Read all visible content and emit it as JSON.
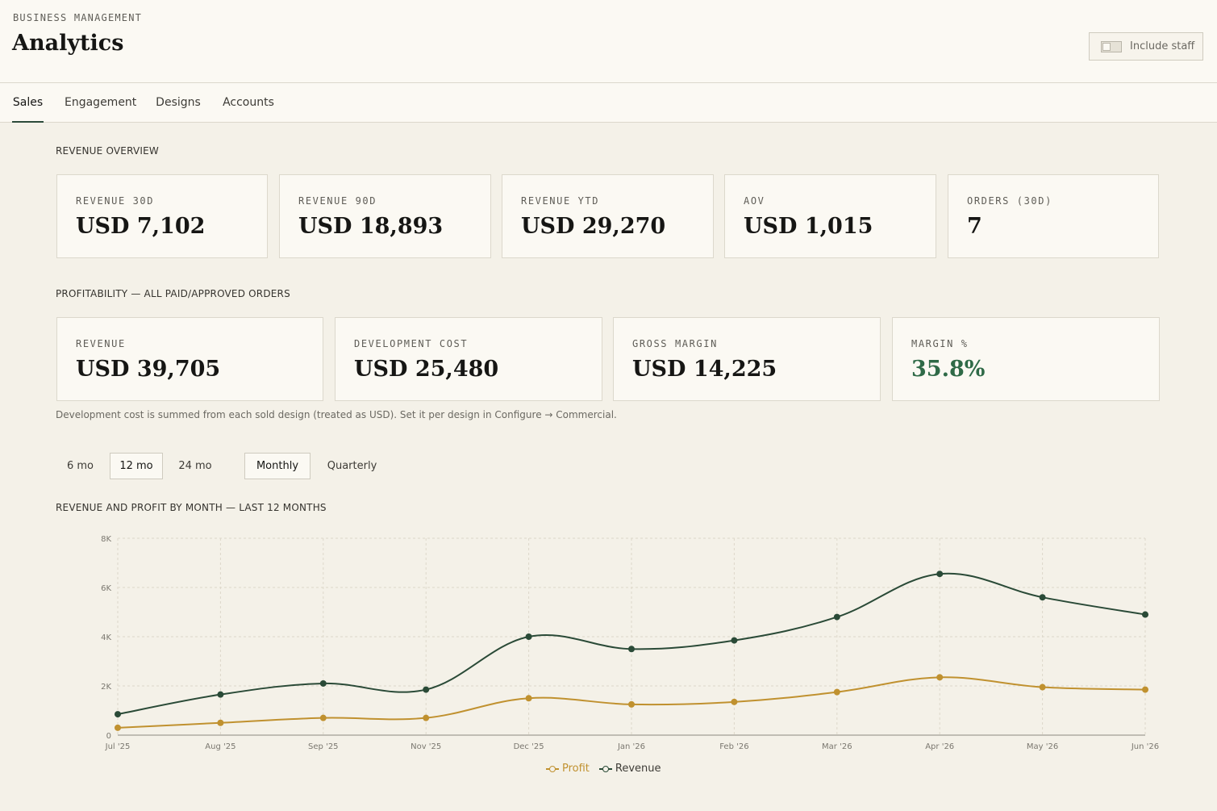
{
  "header": {
    "eyebrow": "BUSINESS MANAGEMENT",
    "title": "Analytics",
    "include_staff_label": "Include staff",
    "include_staff_on": false
  },
  "tabs": [
    {
      "label": "Sales",
      "active": true
    },
    {
      "label": "Engagement",
      "active": false
    },
    {
      "label": "Designs",
      "active": false
    },
    {
      "label": "Accounts",
      "active": false
    }
  ],
  "revenue_overview": {
    "label": "REVENUE OVERVIEW",
    "cards": [
      {
        "label": "REVENUE 30D",
        "value": "USD 7,102"
      },
      {
        "label": "REVENUE 90D",
        "value": "USD 18,893"
      },
      {
        "label": "REVENUE YTD",
        "value": "USD 29,270"
      },
      {
        "label": "AOV",
        "value": "USD 1,015"
      },
      {
        "label": "ORDERS (30D)",
        "value": "7"
      }
    ]
  },
  "profitability": {
    "label": "PROFITABILITY — ALL PAID/APPROVED ORDERS",
    "cards": [
      {
        "label": "REVENUE",
        "value": "USD 39,705"
      },
      {
        "label": "DEVELOPMENT COST",
        "value": "USD 25,480"
      },
      {
        "label": "GROSS MARGIN",
        "value": "USD 14,225"
      },
      {
        "label": "MARGIN %",
        "value": "35.8%"
      }
    ],
    "note": "Development cost is summed from each sold design (treated as USD). Set it per design in Configure → Commercial."
  },
  "range_options": [
    {
      "label": "6 mo",
      "active": false
    },
    {
      "label": "12 mo",
      "active": true
    },
    {
      "label": "24 mo",
      "active": false
    }
  ],
  "granularity_options": [
    {
      "label": "Monthly",
      "active": true
    },
    {
      "label": "Quarterly",
      "active": false
    }
  ],
  "chart_title": "REVENUE AND PROFIT BY MONTH — LAST 12 MONTHS",
  "colors": {
    "accent_green": "#2f6a47",
    "revenue_line": "#2a4a37",
    "profit_line": "#c0912f"
  },
  "chart_data": {
    "type": "line",
    "x": [
      "Jul '25",
      "Aug '25",
      "Sep '25",
      "Nov '25",
      "Dec '25",
      "Jan '26",
      "Feb '26",
      "Mar '26",
      "Apr '26",
      "May '26",
      "Jun '26"
    ],
    "series": [
      {
        "name": "Profit",
        "color": "#c0912f",
        "values": [
          300,
          500,
          700,
          700,
          1500,
          1250,
          1350,
          1750,
          2350,
          1950,
          1850
        ]
      },
      {
        "name": "Revenue",
        "color": "#2a4a37",
        "values": [
          850,
          1650,
          2100,
          1850,
          4000,
          3500,
          3850,
          4800,
          6550,
          5600,
          4900
        ]
      }
    ],
    "y_ticks": [
      "0",
      "2K",
      "4K",
      "6K",
      "8K"
    ],
    "ylim": [
      0,
      8000
    ],
    "grid": true,
    "legend": "bottom-center"
  }
}
